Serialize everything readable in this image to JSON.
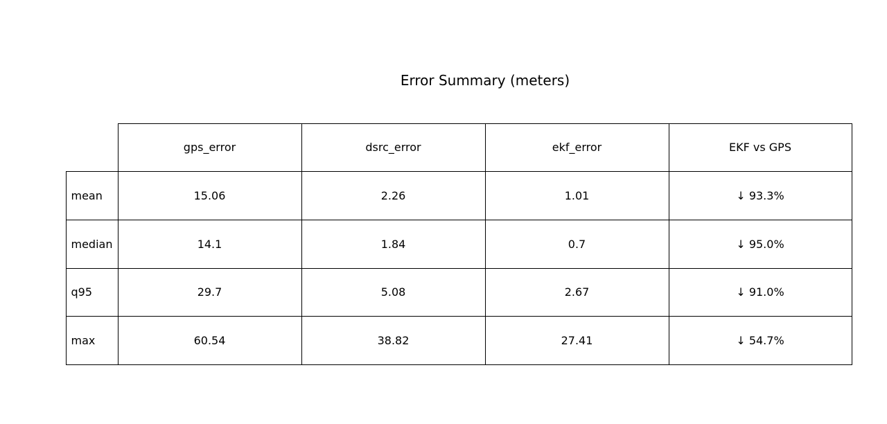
{
  "chart_data": {
    "type": "table",
    "title": "Error Summary (meters)",
    "columns": [
      "gps_error",
      "dsrc_error",
      "ekf_error",
      "EKF vs GPS"
    ],
    "rows": [
      {
        "label": "mean",
        "cells": [
          "15.06",
          "2.26",
          "1.01",
          "↓ 93.3%"
        ]
      },
      {
        "label": "median",
        "cells": [
          "14.1",
          "1.84",
          "0.7",
          "↓ 95.0%"
        ]
      },
      {
        "label": "q95",
        "cells": [
          "29.7",
          "5.08",
          "2.67",
          "↓ 91.0%"
        ]
      },
      {
        "label": "max",
        "cells": [
          "60.54",
          "38.82",
          "27.41",
          "↓ 54.7%"
        ]
      }
    ]
  }
}
